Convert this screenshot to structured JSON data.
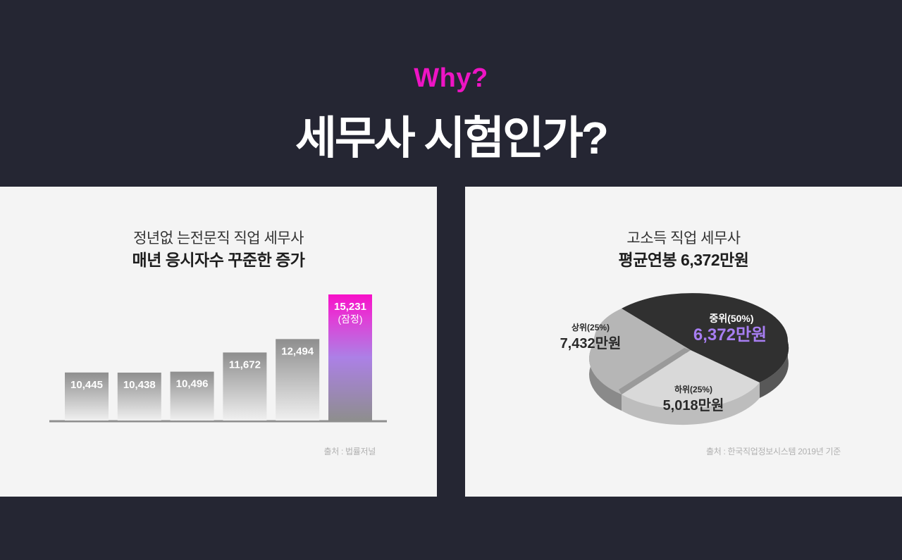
{
  "header": {
    "eyebrow": "Why?",
    "title": "세무사 시험인가?"
  },
  "colors": {
    "background": "#252633",
    "accent": "#ee14c4",
    "highlight_purple": "#a77ef2",
    "panel": "#f4f4f4"
  },
  "left_panel": {
    "subtitle": "정년없 는전문직 직업 세무사",
    "title": "매년 응시자수 꾸준한 증가",
    "source": "출처 : 법률저널"
  },
  "right_panel": {
    "subtitle": "고소득 직업 세무사",
    "title": "평균연봉 6,372만원",
    "source": "출처 : 한국직업정보시스템 2019년 기준"
  },
  "chart_data": [
    {
      "type": "bar",
      "values": [
        10445,
        10438,
        10496,
        11672,
        12494,
        15231
      ],
      "labels": [
        "10,445",
        "10,438",
        "10,496",
        "11,672",
        "12,494",
        "15,231"
      ],
      "highlight_index": 5,
      "highlight_note": "(잠정)",
      "xlabel": "",
      "ylabel": "",
      "grid": false
    },
    {
      "type": "pie",
      "slices": [
        {
          "label": "중위(50%)",
          "percent": 50,
          "value": "6,372만원",
          "color": "#303030"
        },
        {
          "label": "하위(25%)",
          "percent": 25,
          "value": "5,018만원",
          "color": "#d8d8d8"
        },
        {
          "label": "상위(25%)",
          "percent": 25,
          "value": "7,432만원",
          "color": "#b7b7b7"
        }
      ]
    }
  ]
}
